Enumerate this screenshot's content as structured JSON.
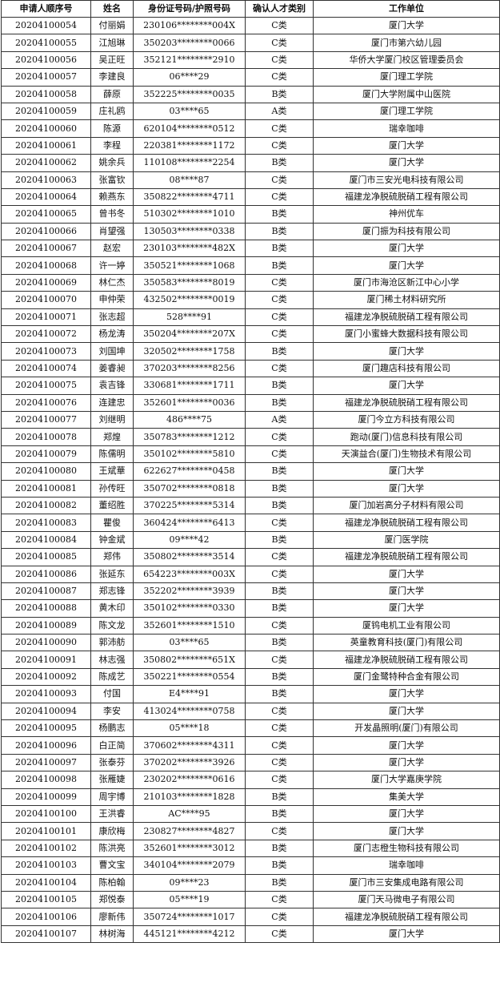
{
  "table": {
    "header": [
      "申请人顺序号",
      "姓名",
      "身份证号码/护照号码",
      "确认人才类别",
      "工作单位"
    ],
    "rows": [
      [
        "20204100054",
        "付丽娟",
        "230106********004X",
        "C类",
        "厦门大学"
      ],
      [
        "20204100055",
        "江旭琳",
        "350203********0066",
        "C类",
        "厦门市第六幼儿园"
      ],
      [
        "20204100056",
        "吴正旺",
        "352121********2910",
        "C类",
        "华侨大学厦门校区管理委员会"
      ],
      [
        "20204100057",
        "李建良",
        "06****29",
        "C类",
        "厦门理工学院"
      ],
      [
        "20204100058",
        "薛原",
        "352225********0035",
        "B类",
        "厦门大学附属中山医院"
      ],
      [
        "20204100059",
        "庄礼鸥",
        "03****65",
        "A类",
        "厦门理工学院"
      ],
      [
        "20204100060",
        "陈源",
        "620104********0512",
        "C类",
        "瑞幸咖啡"
      ],
      [
        "20204100061",
        "李程",
        "220381********1172",
        "C类",
        "厦门大学"
      ],
      [
        "20204100062",
        "姚余兵",
        "110108********2254",
        "B类",
        "厦门大学"
      ],
      [
        "20204100063",
        "张富钦",
        "08****87",
        "C类",
        "厦门市三安光电科技有限公司"
      ],
      [
        "20204100064",
        "赖燕东",
        "350822********4711",
        "C类",
        "福建龙净脱硫脱硝工程有限公司"
      ],
      [
        "20204100065",
        "曾书冬",
        "510302********1010",
        "B类",
        "神州优车"
      ],
      [
        "20204100066",
        "肖望强",
        "130503********0338",
        "B类",
        "厦门振为科技有限公司"
      ],
      [
        "20204100067",
        "赵宏",
        "230103********482X",
        "B类",
        "厦门大学"
      ],
      [
        "20204100068",
        "许一婷",
        "350521********1068",
        "B类",
        "厦门大学"
      ],
      [
        "20204100069",
        "林仁杰",
        "350583********8019",
        "C类",
        "厦门市海沧区新江中心小学"
      ],
      [
        "20204100070",
        "申仲荣",
        "432502********0019",
        "C类",
        "厦门稀土材料研究所"
      ],
      [
        "20204100071",
        "张志超",
        "528****91",
        "C类",
        "福建龙净脱硫脱硝工程有限公司"
      ],
      [
        "20204100072",
        "杨龙涛",
        "350204********207X",
        "C类",
        "厦门小蜜蜂大数据科技有限公司"
      ],
      [
        "20204100073",
        "刘国坤",
        "320502********1758",
        "B类",
        "厦门大学"
      ],
      [
        "20204100074",
        "姜睿昶",
        "370203********8256",
        "C类",
        "厦门趣店科技有限公司"
      ],
      [
        "20204100075",
        "袁吉锋",
        "330681********1711",
        "B类",
        "厦门大学"
      ],
      [
        "20204100076",
        "连建忠",
        "352601********0036",
        "B类",
        "福建龙净脱硫脱硝工程有限公司"
      ],
      [
        "20204100077",
        "刘继明",
        "486****75",
        "A类",
        "厦门今立方科技有限公司"
      ],
      [
        "20204100078",
        "郑煌",
        "350783********1212",
        "C类",
        "跑动(厦门)信息科技有限公司"
      ],
      [
        "20204100079",
        "陈儒明",
        "350102********5810",
        "C类",
        "天演益合(厦门)生物技术有限公司"
      ],
      [
        "20204100080",
        "王斌華",
        "622627********0458",
        "B类",
        "厦门大学"
      ],
      [
        "20204100081",
        "孙传旺",
        "350702********0818",
        "B类",
        "厦门大学"
      ],
      [
        "20204100082",
        "董绍胜",
        "370225********5314",
        "B类",
        "厦门加岩高分子材料有限公司"
      ],
      [
        "20204100083",
        "瞿俊",
        "360424********6413",
        "C类",
        "福建龙净脱硫脱硝工程有限公司"
      ],
      [
        "20204100084",
        "钟金斌",
        "09****42",
        "B类",
        "厦门医学院"
      ],
      [
        "20204100085",
        "郑伟",
        "350802********3514",
        "C类",
        "福建龙净脱硫脱硝工程有限公司"
      ],
      [
        "20204100086",
        "张延东",
        "654223********003X",
        "C类",
        "厦门大学"
      ],
      [
        "20204100087",
        "郑志锋",
        "352202********3939",
        "B类",
        "厦门大学"
      ],
      [
        "20204100088",
        "黄木印",
        "350102********0330",
        "B类",
        "厦门大学"
      ],
      [
        "20204100089",
        "陈文龙",
        "352601********1510",
        "C类",
        "厦钨电机工业有限公司"
      ],
      [
        "20204100090",
        "郭沛舫",
        "03****65",
        "B类",
        "英童教育科技(厦门)有限公司"
      ],
      [
        "20204100091",
        "林志强",
        "350802********651X",
        "C类",
        "福建龙净脱硫脱硝工程有限公司"
      ],
      [
        "20204100092",
        "陈成艺",
        "350221********0554",
        "B类",
        "厦门金鹭特种合金有限公司"
      ],
      [
        "20204100093",
        "付国",
        "E4****91",
        "B类",
        "厦门大学"
      ],
      [
        "20204100094",
        "李安",
        "413024********0758",
        "C类",
        "厦门大学"
      ],
      [
        "20204100095",
        "杨鹏志",
        "05****18",
        "C类",
        "开发晶照明(厦门)有限公司"
      ],
      [
        "20204100096",
        "白正简",
        "370602********4311",
        "C类",
        "厦门大学"
      ],
      [
        "20204100097",
        "张泰芬",
        "370202********3926",
        "C类",
        "厦门大学"
      ],
      [
        "20204100098",
        "张雁婕",
        "230202********0616",
        "C类",
        "厦门大学嘉庚学院"
      ],
      [
        "20204100099",
        "周宇博",
        "210103********1828",
        "B类",
        "集美大学"
      ],
      [
        "20204100100",
        "王洪睿",
        "AC****95",
        "B类",
        "厦门大学"
      ],
      [
        "20204100101",
        "康欣梅",
        "230827********4827",
        "C类",
        "厦门大学"
      ],
      [
        "20204100102",
        "陈洪亮",
        "352601********3012",
        "B类",
        "厦门志橙生物科技有限公司"
      ],
      [
        "20204100103",
        "曹文宝",
        "340104********2079",
        "B类",
        "瑞幸咖啡"
      ],
      [
        "20204100104",
        "陈柏翰",
        "09****23",
        "B类",
        "厦门市三安集成电路有限公司"
      ],
      [
        "20204100105",
        "郑悦泰",
        "05****19",
        "C类",
        "厦门天马微电子有限公司"
      ],
      [
        "20204100106",
        "廖新伟",
        "350724********1017",
        "C类",
        "福建龙净脱硫脱硝工程有限公司"
      ],
      [
        "20204100107",
        "林树海",
        "445121********4212",
        "C类",
        "厦门大学"
      ]
    ]
  }
}
